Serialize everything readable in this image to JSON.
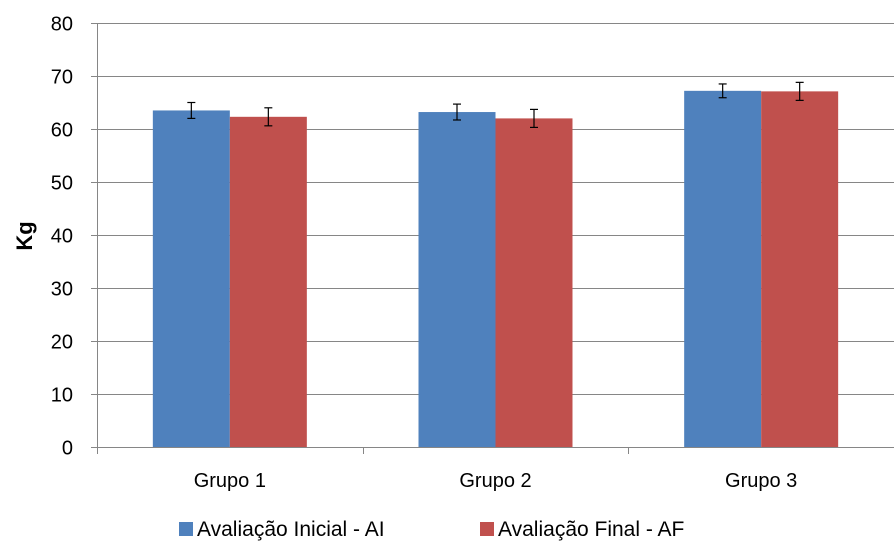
{
  "chart_data": {
    "type": "bar",
    "title": "",
    "xlabel": "",
    "ylabel": "Kg",
    "ylim": [
      0,
      80
    ],
    "yticks": [
      0,
      10,
      20,
      30,
      40,
      50,
      60,
      70,
      80
    ],
    "grid": true,
    "legend_position": "bottom",
    "categories": [
      "Grupo 1",
      "Grupo 2",
      "Grupo 3"
    ],
    "series": [
      {
        "name": "Avaliação Inicial - AI",
        "color": "#4F81BD",
        "values": [
          63.5,
          63.2,
          67.2
        ],
        "errors": [
          1.5,
          1.5,
          1.3
        ]
      },
      {
        "name": "Avaliação Final - AF",
        "color": "#C0504D",
        "values": [
          62.3,
          62.0,
          67.1
        ],
        "errors": [
          1.7,
          1.7,
          1.7
        ]
      }
    ]
  }
}
